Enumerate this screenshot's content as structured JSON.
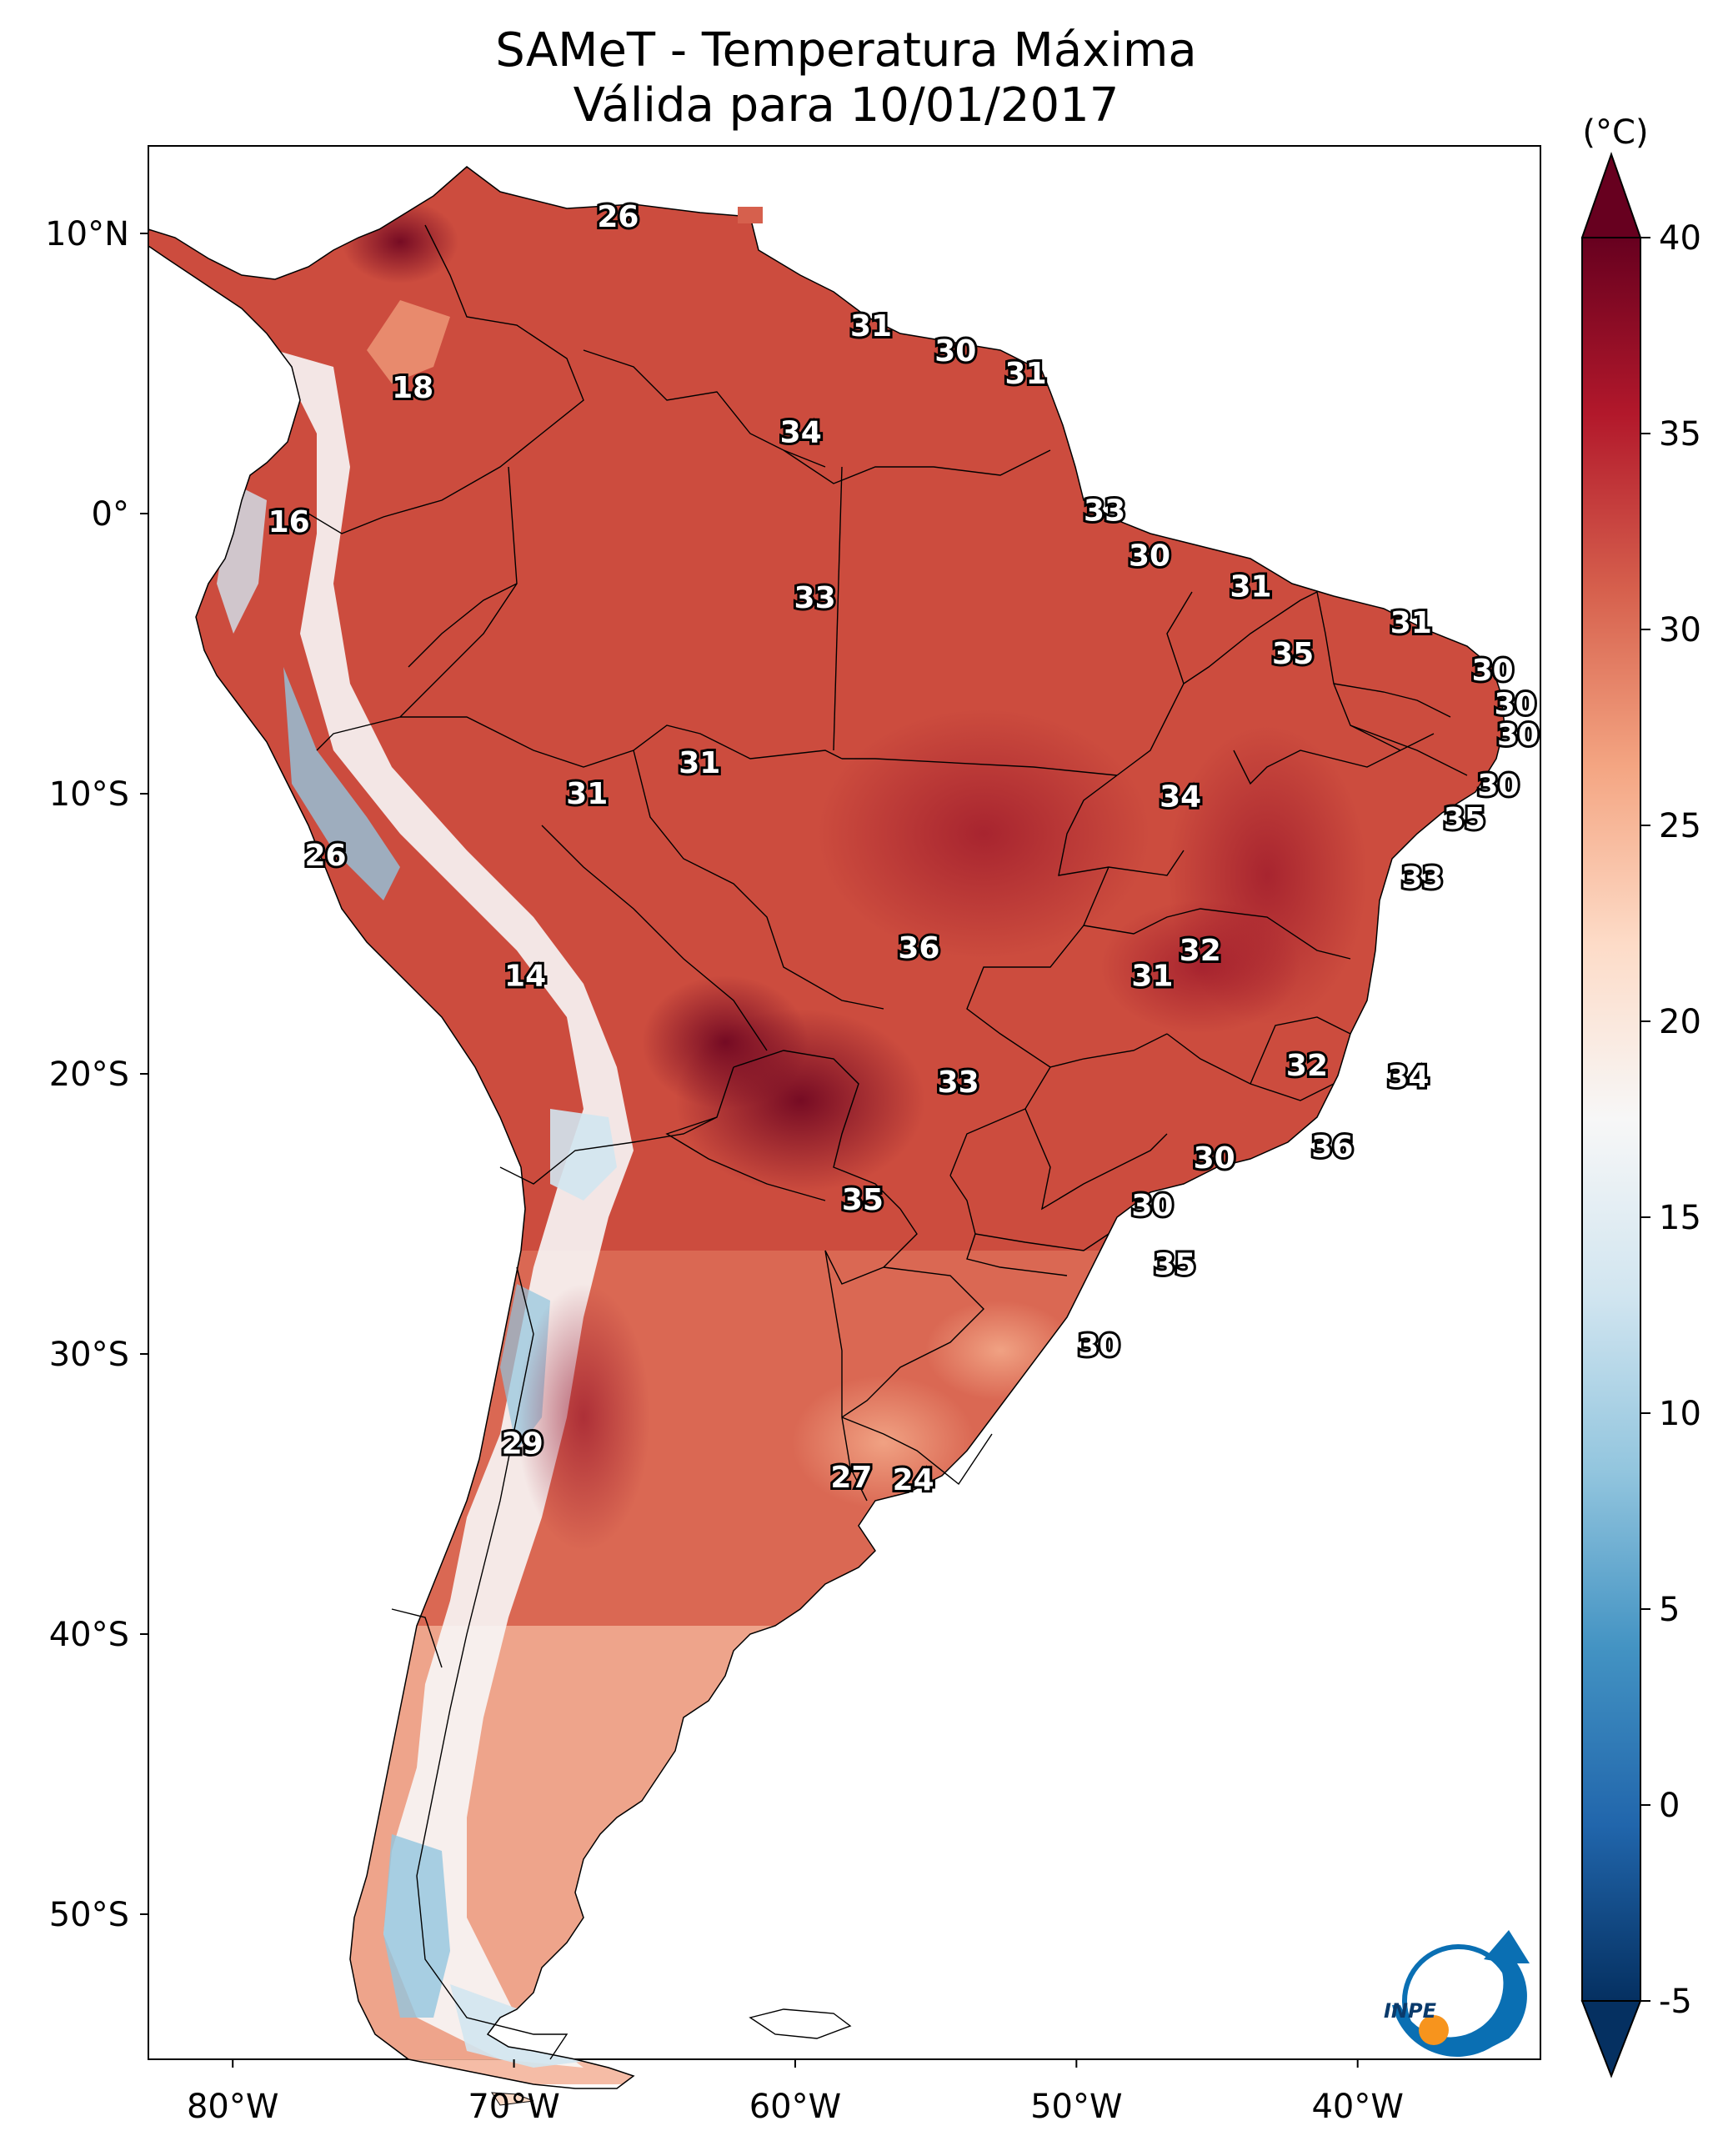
{
  "title": {
    "line1": "SAMeT - Temperatura Máxima",
    "line2": "Válida para 10/01/2017"
  },
  "colorbar": {
    "unit": "(°C)",
    "min": -5,
    "max": 40,
    "ticks": [
      "40",
      "35",
      "30",
      "25",
      "20",
      "15",
      "10",
      "5",
      "0",
      "-5"
    ],
    "colors": [
      "#053061",
      "#2166ac",
      "#4393c3",
      "#92c5de",
      "#d1e5f0",
      "#f7f7f7",
      "#fddbc7",
      "#f4a582",
      "#d6604d",
      "#b2182b",
      "#67001f"
    ],
    "extend": "both"
  },
  "map": {
    "lon_ticks": [
      "80°W",
      "70°W",
      "60°W",
      "50°W",
      "40°W"
    ],
    "lat_ticks": [
      "10°N",
      "0°",
      "10°S",
      "20°S",
      "30°S",
      "40°S",
      "50°S"
    ],
    "variable": "Temperatura Máxima",
    "land_color": "#cc4c3e",
    "ocean_color": "#ffffff"
  },
  "labels": [
    {
      "text": "26",
      "lon": -66.3,
      "lat": 10.6
    },
    {
      "text": "18",
      "lon": -73.6,
      "lat": 4.5
    },
    {
      "text": "31",
      "lon": -57.3,
      "lat": 6.7
    },
    {
      "text": "30",
      "lon": -54.3,
      "lat": 5.8
    },
    {
      "text": "31",
      "lon": -51.8,
      "lat": 5.0
    },
    {
      "text": "34",
      "lon": -59.8,
      "lat": 2.9
    },
    {
      "text": "16",
      "lon": -78.0,
      "lat": -0.3
    },
    {
      "text": "33",
      "lon": -49.0,
      "lat": 0.1
    },
    {
      "text": "30",
      "lon": -47.4,
      "lat": -1.5
    },
    {
      "text": "33",
      "lon": -59.3,
      "lat": -3.0
    },
    {
      "text": "31",
      "lon": -43.8,
      "lat": -2.6
    },
    {
      "text": "31",
      "lon": -38.1,
      "lat": -3.9
    },
    {
      "text": "35",
      "lon": -42.3,
      "lat": -5.0
    },
    {
      "text": "30",
      "lon": -35.2,
      "lat": -5.6
    },
    {
      "text": "30",
      "lon": -34.4,
      "lat": -6.8
    },
    {
      "text": "30",
      "lon": -34.3,
      "lat": -7.9
    },
    {
      "text": "31",
      "lon": -63.4,
      "lat": -8.9
    },
    {
      "text": "31",
      "lon": -67.4,
      "lat": -10.0
    },
    {
      "text": "34",
      "lon": -46.3,
      "lat": -10.1
    },
    {
      "text": "30",
      "lon": -35.0,
      "lat": -9.7
    },
    {
      "text": "35",
      "lon": -36.2,
      "lat": -10.9
    },
    {
      "text": "26",
      "lon": -76.7,
      "lat": -12.2
    },
    {
      "text": "33",
      "lon": -37.7,
      "lat": -13.0
    },
    {
      "text": "36",
      "lon": -55.6,
      "lat": -15.5
    },
    {
      "text": "32",
      "lon": -45.6,
      "lat": -15.6
    },
    {
      "text": "31",
      "lon": -47.3,
      "lat": -16.5
    },
    {
      "text": "14",
      "lon": -69.6,
      "lat": -16.5
    },
    {
      "text": "32",
      "lon": -41.8,
      "lat": -19.7
    },
    {
      "text": "34",
      "lon": -38.2,
      "lat": -20.1
    },
    {
      "text": "33",
      "lon": -54.2,
      "lat": -20.3
    },
    {
      "text": "36",
      "lon": -40.9,
      "lat": -22.6
    },
    {
      "text": "30",
      "lon": -45.1,
      "lat": -23.0
    },
    {
      "text": "30",
      "lon": -47.3,
      "lat": -24.7
    },
    {
      "text": "35",
      "lon": -57.6,
      "lat": -24.5
    },
    {
      "text": "35",
      "lon": -46.5,
      "lat": -26.8
    },
    {
      "text": "30",
      "lon": -49.2,
      "lat": -29.7
    },
    {
      "text": "29",
      "lon": -69.7,
      "lat": -33.2
    },
    {
      "text": "27",
      "lon": -58.0,
      "lat": -34.4
    },
    {
      "text": "24",
      "lon": -55.8,
      "lat": -34.5
    }
  ],
  "logo": {
    "text": "INPE"
  }
}
